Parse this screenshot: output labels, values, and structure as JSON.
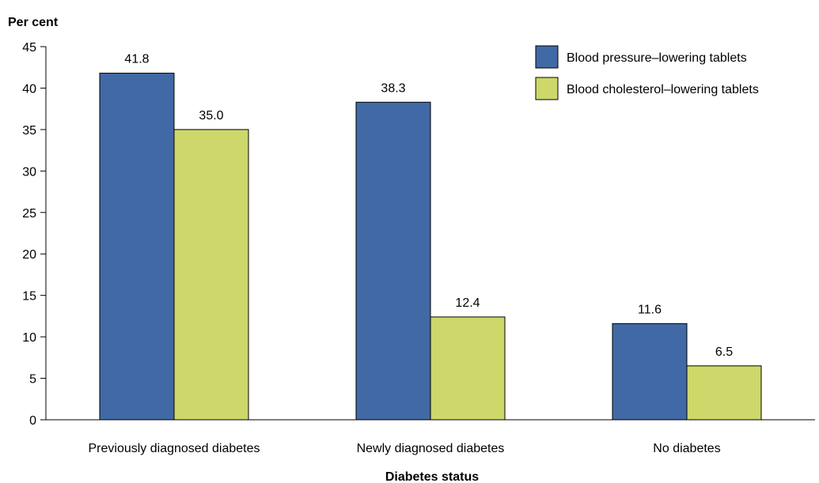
{
  "chart_data": {
    "type": "bar",
    "ylabel": "Per cent",
    "xlabel": "Diabetes status",
    "categories": [
      "Previously diagnosed diabetes",
      "Newly diagnosed diabetes",
      "No diabetes"
    ],
    "series": [
      {
        "name": "Blood pressure–lowering tablets",
        "color": "#4169a5",
        "values": [
          41.8,
          38.3,
          11.6
        ],
        "labels": [
          "41.8",
          "38.3",
          "11.6"
        ]
      },
      {
        "name": "Blood cholesterol–lowering tablets",
        "color": "#cdd76a",
        "values": [
          35.0,
          12.4,
          6.5
        ],
        "labels": [
          "35.0",
          "12.4",
          "6.5"
        ]
      }
    ],
    "ylim": [
      0,
      45
    ],
    "yticks": [
      "0",
      "5",
      "10",
      "15",
      "20",
      "25",
      "30",
      "35",
      "40",
      "45"
    ],
    "grid": false,
    "legend_position": "top-right"
  }
}
